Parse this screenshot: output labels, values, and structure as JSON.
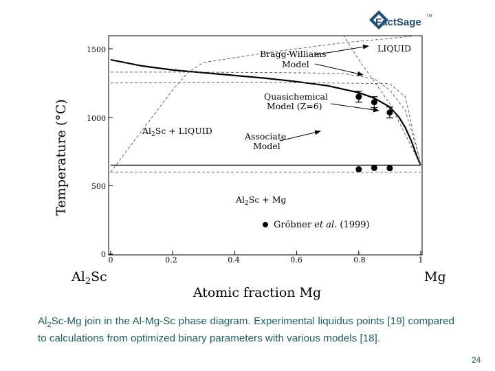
{
  "logo": {
    "text": "FactSage",
    "tm": "TM"
  },
  "caption": {
    "lead": "Al",
    "sub": "2",
    "rest": "Sc-Mg join in the Al-Mg-Sc phase diagram. Experimental liquidus points [19] compared to calculations from optimized binary parameters with various models [18]."
  },
  "page_number": "24",
  "chart_data": {
    "type": "line",
    "title": "",
    "xlabel": "Atomic fraction Mg",
    "ylabel": "Temperature (°C)",
    "xlim": [
      0,
      1
    ],
    "ylim": [
      0,
      1600
    ],
    "x_ticks": [
      "0",
      "0.2",
      "0.4",
      "0.6",
      "0.8",
      "1"
    ],
    "y_ticks": [
      "0",
      "500",
      "1000",
      "1500"
    ],
    "x_end_labels": {
      "left": "Al2Sc",
      "right": "Mg"
    },
    "grid": false,
    "series": [
      {
        "style": "solid-thick",
        "x": [
          0,
          0.1,
          0.2,
          0.3,
          0.4,
          0.5,
          0.6,
          0.7,
          0.8,
          0.85,
          0.9,
          0.93,
          0.95,
          0.97,
          0.99,
          1.0
        ],
        "y": [
          1420,
          1375,
          1345,
          1325,
          1305,
          1285,
          1260,
          1230,
          1180,
          1140,
          1075,
          1000,
          925,
          825,
          700,
          650
        ]
      },
      {
        "style": "solid",
        "x": [
          0,
          1
        ],
        "y": [
          650,
          650
        ]
      },
      {
        "style": "dashed",
        "x": [
          0,
          0.15,
          0.3,
          0.45,
          0.6,
          0.7,
          0.8,
          0.9,
          0.95,
          1.0
        ],
        "y": [
          1250,
          1252,
          1253,
          1254,
          1252,
          1250,
          1248,
          1245,
          1150,
          650
        ]
      },
      {
        "style": "dashed",
        "x": [
          0,
          0.2,
          0.4,
          0.6,
          0.75,
          0.85,
          0.9,
          0.95,
          0.99,
          1.0
        ],
        "y": [
          1330,
          1330,
          1328,
          1325,
          1320,
          1280,
          1200,
          1050,
          750,
          650
        ]
      },
      {
        "style": "dashed",
        "x": [
          0,
          0.1,
          0.2,
          0.25,
          0.3
        ],
        "y": [
          600,
          900,
          1200,
          1330,
          1400
        ]
      },
      {
        "style": "dashed",
        "x": [
          0.3,
          0.4,
          0.5,
          0.6,
          0.7,
          0.8,
          0.9,
          1.0
        ],
        "y": [
          1400,
          1435,
          1470,
          1500,
          1530,
          1555,
          1575,
          1600
        ]
      },
      {
        "style": "dashed",
        "x": [
          0.75,
          0.8,
          0.9,
          1.0
        ],
        "y": [
          1600,
          1420,
          1100,
          650
        ]
      },
      {
        "style": "dashed",
        "x": [
          0,
          1
        ],
        "y": [
          600,
          600
        ]
      }
    ],
    "experimental": {
      "label": "Gröbner et al. (1999)",
      "label_parts": [
        "Gröbner ",
        "et al.",
        " (1999)"
      ],
      "liquidus": [
        {
          "x": 0.8,
          "y": 1150,
          "err": 40
        },
        {
          "x": 0.85,
          "y": 1110,
          "err": 40
        },
        {
          "x": 0.9,
          "y": 1035,
          "err": 40
        }
      ],
      "solidus": [
        {
          "x": 0.8,
          "y": 620
        },
        {
          "x": 0.85,
          "y": 630
        },
        {
          "x": 0.9,
          "y": 628
        }
      ]
    },
    "annotations": {
      "liquid": "LIQUID",
      "bragg_l1": "Bragg-Williams",
      "bragg_l2": "Model",
      "quasi_l1": "Quasichemical",
      "quasi_l2": "Model (Z=6)",
      "assoc_l1": "Associate",
      "assoc_l2": "Model",
      "region_upper": {
        "pre": "Al",
        "sub": "2",
        "post": "Sc + LIQUID"
      },
      "region_lower": {
        "pre": "Al",
        "sub": "2",
        "post": "Sc + Mg"
      }
    }
  }
}
